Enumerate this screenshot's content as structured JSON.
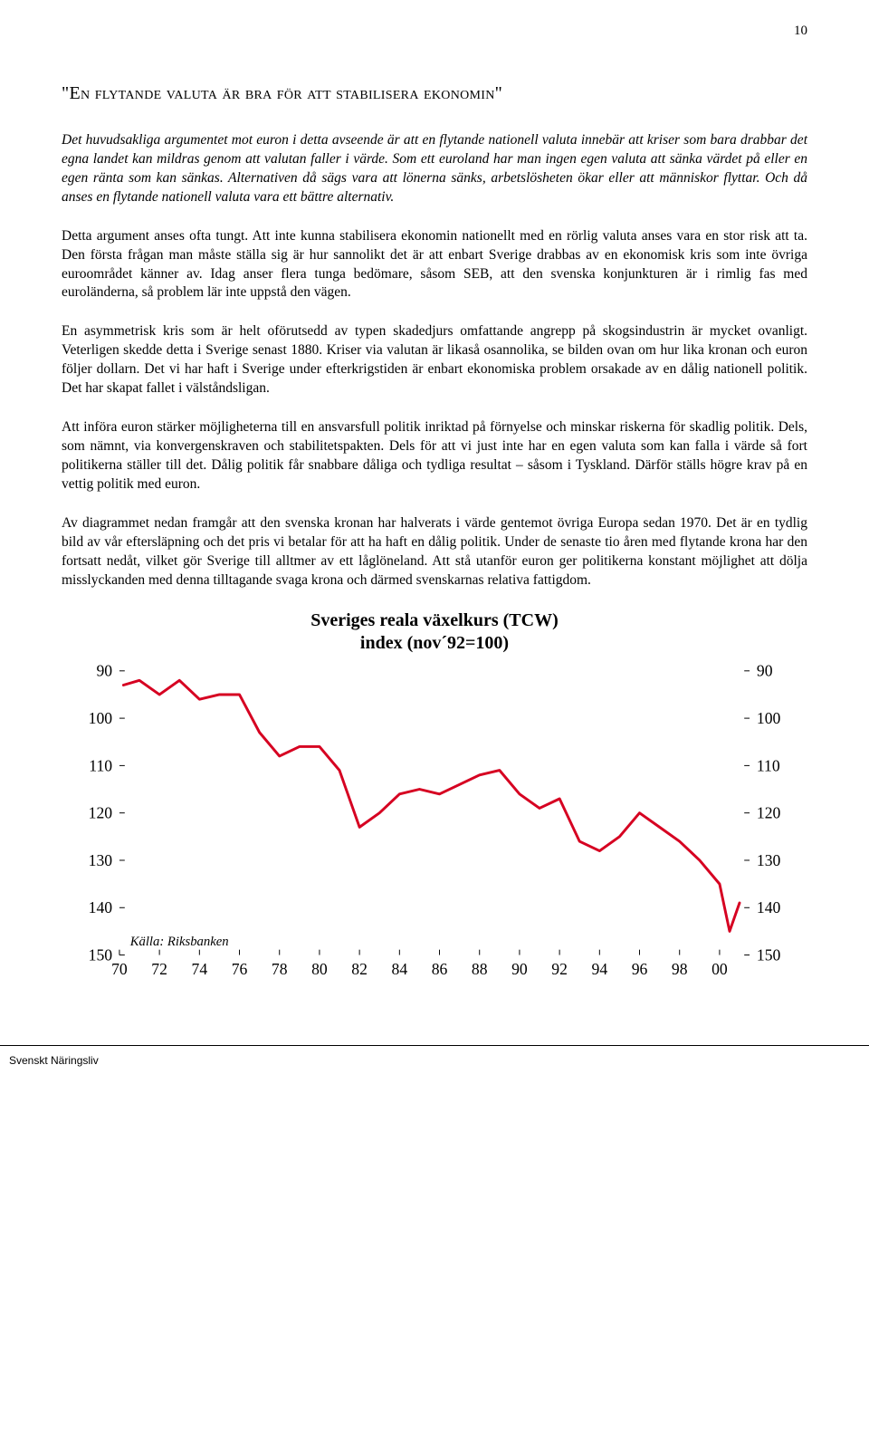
{
  "page_number": "10",
  "heading_quote_open": "\"",
  "heading_main": "En flytande valuta är bra för att stabilisera ekonomin",
  "heading_quote_close": "\"",
  "intro_italic": "Det huvudsakliga argumentet mot euron i detta avseende är att en flytande nationell valuta innebär att kriser som bara drabbar det egna landet kan mildras genom att valutan faller i värde. Som ett euroland har man ingen egen valuta att sänka värdet på eller en egen ränta som kan sänkas. Alternativen då sägs vara att lönerna sänks, arbetslösheten ökar eller att människor flyttar. Och då anses en flytande nationell valuta vara ett bättre alternativ.",
  "p2a": "Detta argument anses ofta tungt. Att inte kunna stabilisera ekonomin nationellt med en rörlig valuta anses vara en stor risk att ta. ",
  "p2b": "Den första frågan man måste ställa sig är hur sannolikt det är att enbart Sverige drabbas av en ekonomisk kris som inte övriga euroområdet känner av",
  "p2c": ". Idag anser flera tunga bedömare, såsom SEB, att den svenska konjunkturen är i rimlig fas med euroländerna, så problem lär inte uppstå den vägen.",
  "p3": "En asymmetrisk kris som är helt oförutsedd av typen skadedjurs omfattande angrepp på skogsindustrin är mycket ovanligt. Veterligen skedde detta i Sverige senast 1880. Kriser via valutan är likaså osannolika, se bilden ovan om hur lika kronan och euron följer dollarn. Det vi har haft i Sverige under efterkrigstiden är enbart ekonomiska problem orsakade av en dålig nationell politik. Det har skapat fallet i välståndsligan.",
  "p4": "Att införa euron stärker möjligheterna till en ansvarsfull politik inriktad på förnyelse och minskar riskerna för skadlig politik. Dels, som nämnt, via konvergenskraven och stabilitetspakten. Dels för att vi just inte har en egen valuta som kan falla i värde så fort politikerna ställer till det. Dålig politik får snabbare dåliga och tydliga resultat – såsom i Tyskland. Därför ställs högre krav på en vettig politik med euron.",
  "p5": "Av diagrammet nedan framgår att den svenska kronan har halverats i värde gentemot övriga Europa sedan 1970. Det är en tydlig bild av vår eftersläpning och det pris vi betalar för att ha haft en dålig politik. Under de senaste tio åren med flytande krona har den fortsatt nedåt, vilket gör Sverige till alltmer av ett låglöneland. Att stå utanför euron ger politikerna konstant möjlighet att dölja misslyckanden med denna tilltagande svaga krona och därmed svenskarnas relativa fattigdom.",
  "chart": {
    "type": "line",
    "title_line1": "Sveriges reala växelkurs (TCW)",
    "title_line2": "index (nov´92=100)",
    "x_ticks": [
      "70",
      "72",
      "74",
      "76",
      "78",
      "80",
      "82",
      "84",
      "86",
      "88",
      "90",
      "92",
      "94",
      "96",
      "98",
      "00"
    ],
    "y_ticks": [
      "90",
      "100",
      "110",
      "120",
      "130",
      "140",
      "150"
    ],
    "ylim": [
      90,
      150
    ],
    "xlim": [
      70,
      101.5
    ],
    "line_color": "#d60021",
    "line_width": 3,
    "axis_color": "#000000",
    "tick_color": "#000000",
    "background_color": "#ffffff",
    "tick_font_size": 18,
    "title_font_size": 20,
    "source_label": "Källa: Riksbanken",
    "source_font_style": "italic",
    "series": [
      {
        "x": 70.2,
        "y": 93
      },
      {
        "x": 71,
        "y": 92
      },
      {
        "x": 72,
        "y": 95
      },
      {
        "x": 73,
        "y": 92
      },
      {
        "x": 74,
        "y": 96
      },
      {
        "x": 75,
        "y": 95
      },
      {
        "x": 76,
        "y": 95
      },
      {
        "x": 77,
        "y": 103
      },
      {
        "x": 78,
        "y": 108
      },
      {
        "x": 79,
        "y": 106
      },
      {
        "x": 80,
        "y": 106
      },
      {
        "x": 81,
        "y": 111
      },
      {
        "x": 82,
        "y": 123
      },
      {
        "x": 83,
        "y": 120
      },
      {
        "x": 84,
        "y": 116
      },
      {
        "x": 85,
        "y": 115
      },
      {
        "x": 86,
        "y": 116
      },
      {
        "x": 87,
        "y": 114
      },
      {
        "x": 88,
        "y": 112
      },
      {
        "x": 89,
        "y": 111
      },
      {
        "x": 90,
        "y": 116
      },
      {
        "x": 91,
        "y": 119
      },
      {
        "x": 92,
        "y": 117
      },
      {
        "x": 93,
        "y": 126
      },
      {
        "x": 94,
        "y": 128
      },
      {
        "x": 95,
        "y": 125
      },
      {
        "x": 96,
        "y": 120
      },
      {
        "x": 97,
        "y": 123
      },
      {
        "x": 98,
        "y": 126
      },
      {
        "x": 99,
        "y": 130
      },
      {
        "x": 100,
        "y": 135
      },
      {
        "x": 100.5,
        "y": 145
      },
      {
        "x": 101,
        "y": 139
      }
    ]
  },
  "footer": "Svenskt Näringsliv"
}
